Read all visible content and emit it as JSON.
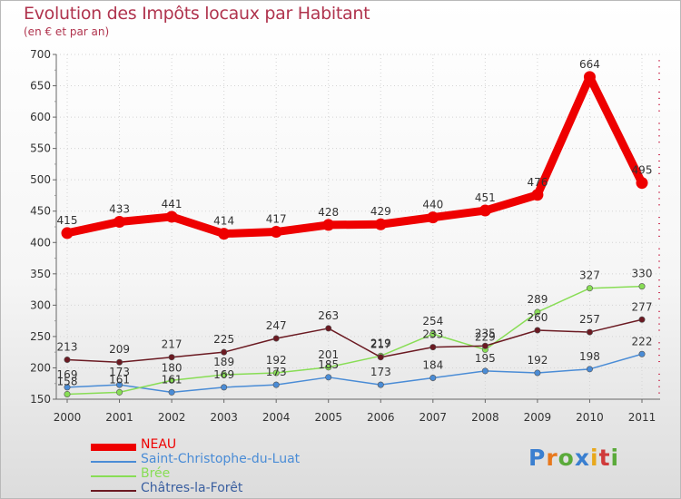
{
  "chart_data": {
    "type": "line",
    "title": "Evolution des Impôts locaux par Habitant",
    "subtitle": "(en € et par an)",
    "categories": [
      "2000",
      "2001",
      "2002",
      "2003",
      "2004",
      "2005",
      "2006",
      "2007",
      "2008",
      "2009",
      "2010",
      "2011"
    ],
    "ylim": [
      150,
      700
    ],
    "yticks": [
      150,
      200,
      250,
      300,
      350,
      400,
      450,
      500,
      550,
      600,
      650,
      700
    ],
    "series": [
      {
        "name": "NEAU",
        "color": "#ee0000",
        "values": [
          415,
          433,
          441,
          414,
          417,
          428,
          429,
          440,
          451,
          476,
          664,
          495
        ]
      },
      {
        "name": "Saint-Christophe-du-Luat",
        "color": "#4a8cd6",
        "values": [
          169,
          173,
          161,
          169,
          173,
          185,
          173,
          184,
          195,
          192,
          198,
          222
        ]
      },
      {
        "name": "Brée",
        "color": "#88dd55",
        "values": [
          158,
          161,
          180,
          189,
          192,
          201,
          219,
          254,
          229,
          289,
          327,
          330
        ]
      },
      {
        "name": "Châtres-la-Forêt",
        "color": "#6b1a22",
        "values": [
          213,
          209,
          217,
          225,
          247,
          263,
          217,
          233,
          235,
          260,
          257,
          277
        ]
      }
    ]
  },
  "logo": {
    "text": "Proxiti",
    "colors": [
      "#3a7fd0",
      "#e8781c",
      "#5aaa3a",
      "#3a7fd0",
      "#e8a81c",
      "#d03a3a",
      "#5aaa3a"
    ]
  }
}
